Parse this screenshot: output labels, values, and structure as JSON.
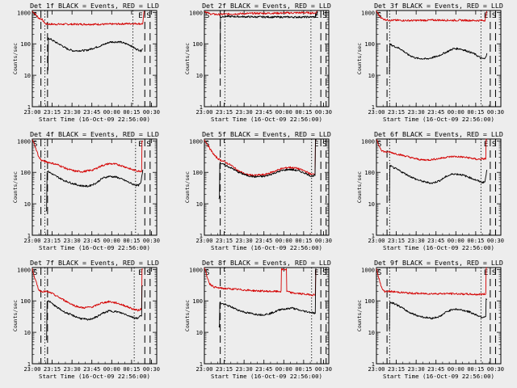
{
  "figure": {
    "background": "#ededed",
    "axis_color": "#000000",
    "events_color": "#000000",
    "lld_color": "#d40000",
    "xlabel": "Start Time (16-Oct-09 22:56:00)",
    "ylabel": "Counts/sec",
    "x_ticks": [
      "23:00",
      "23:15",
      "23:30",
      "23:45",
      "00:00",
      "00:15",
      "00:30"
    ],
    "y_ticks": [
      "1",
      "10",
      "100",
      "1000"
    ],
    "markers": {
      "start": "S",
      "end": "E",
      "s": "S"
    }
  },
  "chart_data": [
    {
      "type": "line",
      "title": "Det 1f BLACK = Events, RED = LLD",
      "xlabel": "Start Time (16-Oct-09 22:56:00)",
      "ylabel": "Counts/sec",
      "x_units": "minutes since 22:56:00",
      "xlim": [
        4,
        98
      ],
      "ylim": [
        1,
        1000
      ],
      "yscale": "log",
      "x_ticks_minutes": [
        4,
        19,
        34,
        49,
        64,
        79,
        94
      ],
      "vlines": {
        "dashed": [
          10.5,
          15.5,
          89,
          93
        ],
        "dotted": [
          13.5,
          80
        ]
      },
      "series": [
        {
          "name": "LLD",
          "color": "red",
          "x": [
            4,
            6,
            9,
            11,
            14,
            20,
            30,
            40,
            50,
            60,
            70,
            78,
            84,
            86,
            87.5,
            88.5
          ],
          "y": [
            1100,
            900,
            650,
            620,
            430,
            420,
            420,
            420,
            420,
            420,
            430,
            440,
            440,
            430,
            440,
            1100
          ]
        },
        {
          "name": "Events",
          "color": "black",
          "x": [
            15.5,
            16.5,
            18,
            22,
            26,
            30,
            35,
            45,
            55,
            63,
            70,
            77,
            82,
            86,
            87.5
          ],
          "y": [
            14,
            150,
            140,
            110,
            90,
            70,
            60,
            62,
            85,
            115,
            115,
            95,
            70,
            60,
            70
          ]
        }
      ]
    },
    {
      "type": "line",
      "title": "Det 2f BLACK = Events, RED = LLD",
      "xlabel": "Start Time (16-Oct-09 22:56:00)",
      "ylabel": "Counts/sec",
      "x_units": "minutes since 22:56:00",
      "xlim": [
        4,
        98
      ],
      "ylim": [
        1,
        1000
      ],
      "yscale": "log",
      "x_ticks_minutes": [
        4,
        19,
        34,
        49,
        64,
        79,
        94
      ],
      "vlines": {
        "dashed": [
          16,
          92,
          96
        ],
        "dotted": [
          19.5,
          84.5
        ]
      },
      "series": [
        {
          "name": "LLD",
          "color": "red",
          "x": [
            4,
            6,
            8,
            11,
            14,
            20,
            40,
            60,
            80,
            88,
            89.5
          ],
          "y": [
            1100,
            1000,
            900,
            880,
            860,
            880,
            930,
            950,
            980,
            950,
            1100
          ]
        },
        {
          "name": "Events",
          "color": "black",
          "x": [
            15.5,
            16.5,
            18,
            25,
            40,
            60,
            80,
            88,
            89.5
          ],
          "y": [
            15,
            700,
            750,
            740,
            720,
            710,
            710,
            720,
            1050
          ]
        }
      ]
    },
    {
      "type": "line",
      "title": "Det 3f BLACK = Events, RED = LLD",
      "xlabel": "Start Time (16-Oct-09 22:56:00)",
      "ylabel": "Counts/sec",
      "x_units": "minutes since 22:56:00",
      "xlim": [
        4,
        98
      ],
      "ylim": [
        1,
        1000
      ],
      "yscale": "log",
      "x_ticks_minutes": [
        4,
        19,
        34,
        49,
        64,
        79,
        94
      ],
      "vlines": {
        "dashed": [
          12,
          90,
          94
        ],
        "dotted": [
          14,
          83
        ]
      },
      "series": [
        {
          "name": "LLD",
          "color": "red",
          "x": [
            4,
            6,
            8,
            10,
            14,
            20,
            30,
            40,
            50,
            60,
            70,
            80,
            86,
            87.5
          ],
          "y": [
            1100,
            800,
            650,
            600,
            560,
            560,
            550,
            560,
            570,
            560,
            560,
            550,
            560,
            1100
          ]
        },
        {
          "name": "Events",
          "color": "black",
          "x": [
            13.5,
            14.5,
            17,
            22,
            28,
            34,
            42,
            50,
            57,
            62,
            67,
            72,
            78,
            83,
            86,
            87.5
          ],
          "y": [
            12,
            95,
            85,
            70,
            45,
            35,
            33,
            40,
            55,
            70,
            70,
            60,
            48,
            35,
            33,
            50
          ]
        }
      ]
    },
    {
      "type": "line",
      "title": "Det 4f BLACK = Events, RED = LLD",
      "xlabel": "Start Time (16-Oct-09 22:56:00)",
      "ylabel": "Counts/sec",
      "x_units": "minutes since 22:56:00",
      "xlim": [
        4,
        98
      ],
      "ylim": [
        1,
        1000
      ],
      "yscale": "log",
      "x_ticks_minutes": [
        4,
        19,
        34,
        49,
        64,
        79,
        94
      ],
      "vlines": {
        "dashed": [
          10.5,
          15.5,
          89,
          93
        ],
        "dotted": [
          13.5,
          82
        ]
      },
      "series": [
        {
          "name": "LLD",
          "color": "red",
          "x": [
            4,
            6,
            9,
            11,
            14,
            18,
            24,
            30,
            36,
            42,
            50,
            56,
            62,
            68,
            74,
            80,
            84,
            86,
            87.5
          ],
          "y": [
            1100,
            700,
            300,
            240,
            220,
            200,
            170,
            130,
            110,
            105,
            120,
            160,
            190,
            180,
            150,
            120,
            110,
            110,
            1000
          ]
        },
        {
          "name": "Events",
          "color": "black",
          "x": [
            14.5,
            15.5,
            17,
            22,
            28,
            34,
            40,
            46,
            52,
            57,
            62,
            68,
            74,
            80,
            84,
            86,
            87.5
          ],
          "y": [
            6,
            110,
            100,
            75,
            55,
            45,
            38,
            36,
            45,
            65,
            75,
            70,
            55,
            42,
            38,
            45,
            120
          ]
        }
      ]
    },
    {
      "type": "line",
      "title": "Det 5f BLACK = Events, RED = LLD",
      "xlabel": "Start Time (16-Oct-09 22:56:00)",
      "ylabel": "Counts/sec",
      "x_units": "minutes since 22:56:00",
      "xlim": [
        4,
        98
      ],
      "ylim": [
        1,
        1000
      ],
      "yscale": "log",
      "x_ticks_minutes": [
        4,
        19,
        34,
        49,
        64,
        79,
        94
      ],
      "vlines": {
        "dashed": [
          16,
          92,
          96
        ],
        "dotted": [
          19.5,
          85
        ]
      },
      "series": [
        {
          "name": "LLD",
          "color": "red",
          "x": [
            4,
            6,
            9,
            12,
            15,
            18,
            24,
            30,
            36,
            42,
            50,
            56,
            62,
            68,
            74,
            80,
            85,
            87,
            88.5
          ],
          "y": [
            1100,
            800,
            500,
            330,
            260,
            230,
            170,
            110,
            85,
            80,
            85,
            105,
            130,
            145,
            135,
            110,
            85,
            90,
            1100
          ]
        },
        {
          "name": "Events",
          "color": "black",
          "x": [
            15,
            16,
            18,
            24,
            30,
            36,
            42,
            50,
            56,
            62,
            68,
            74,
            80,
            85,
            87,
            88.5
          ],
          "y": [
            15,
            200,
            180,
            140,
            100,
            80,
            72,
            75,
            92,
            112,
            125,
            115,
            95,
            75,
            80,
            1050
          ]
        }
      ]
    },
    {
      "type": "line",
      "title": "Det 6f BLACK = Events, RED = LLD",
      "xlabel": "Start Time (16-Oct-09 22:56:00)",
      "ylabel": "Counts/sec",
      "x_units": "minutes since 22:56:00",
      "xlim": [
        4,
        98
      ],
      "ylim": [
        1,
        1000
      ],
      "yscale": "log",
      "x_ticks_minutes": [
        4,
        19,
        34,
        49,
        64,
        79,
        94
      ],
      "vlines": {
        "dashed": [
          12,
          90,
          94
        ],
        "dotted": [
          14,
          83
        ]
      },
      "series": [
        {
          "name": "LLD",
          "color": "red",
          "x": [
            4,
            6,
            8,
            10,
            14,
            20,
            26,
            32,
            38,
            44,
            50,
            56,
            62,
            68,
            74,
            80,
            86,
            87.5
          ],
          "y": [
            1100,
            700,
            500,
            450,
            440,
            380,
            330,
            280,
            250,
            250,
            270,
            300,
            320,
            310,
            290,
            260,
            270,
            1100
          ]
        },
        {
          "name": "Events",
          "color": "black",
          "x": [
            13.5,
            14.5,
            17,
            22,
            28,
            34,
            40,
            46,
            52,
            57,
            62,
            68,
            74,
            80,
            84,
            86,
            87.5
          ],
          "y": [
            12,
            160,
            140,
            110,
            80,
            60,
            50,
            45,
            55,
            75,
            90,
            85,
            70,
            55,
            48,
            50,
            120
          ]
        }
      ]
    },
    {
      "type": "line",
      "title": "Det 7f BLACK = Events, RED = LLD",
      "xlabel": "Start Time (16-Oct-09 22:56:00)",
      "ylabel": "Counts/sec",
      "x_units": "minutes since 22:56:00",
      "xlim": [
        4,
        98
      ],
      "ylim": [
        1,
        1000
      ],
      "yscale": "log",
      "x_ticks_minutes": [
        4,
        19,
        34,
        49,
        64,
        79,
        94
      ],
      "vlines": {
        "dashed": [
          10.5,
          15.5,
          89,
          93
        ],
        "dotted": [
          13.5,
          81
        ]
      },
      "series": [
        {
          "name": "LLD",
          "color": "red",
          "x": [
            4,
            6,
            9,
            11,
            14,
            18,
            24,
            30,
            36,
            42,
            50,
            56,
            62,
            68,
            74,
            80,
            84,
            86,
            87.5
          ],
          "y": [
            1100,
            500,
            220,
            200,
            200,
            180,
            130,
            95,
            70,
            60,
            65,
            85,
            95,
            85,
            70,
            55,
            50,
            55,
            1000
          ]
        },
        {
          "name": "Events",
          "color": "black",
          "x": [
            14.5,
            15.5,
            17,
            22,
            28,
            34,
            40,
            46,
            52,
            57,
            62,
            68,
            74,
            80,
            84,
            86,
            87.5
          ],
          "y": [
            6,
            100,
            95,
            65,
            45,
            35,
            28,
            25,
            30,
            40,
            48,
            45,
            38,
            30,
            28,
            35,
            300
          ]
        }
      ]
    },
    {
      "type": "line",
      "title": "Det 8f BLACK = Events, RED = LLD",
      "xlabel": "Start Time (16-Oct-09 22:56:00)",
      "ylabel": "Counts/sec",
      "x_units": "minutes since 22:56:00",
      "xlim": [
        4,
        98
      ],
      "ylim": [
        1,
        1000
      ],
      "yscale": "log",
      "x_ticks_minutes": [
        4,
        19,
        34,
        49,
        64,
        79,
        94
      ],
      "vlines": {
        "dashed": [
          16,
          92,
          96
        ],
        "dotted": [
          19.5,
          85
        ]
      },
      "series": [
        {
          "name": "LLD",
          "color": "red",
          "x": [
            4,
            6,
            8,
            11,
            14,
            18,
            24,
            30,
            36,
            42,
            48,
            54,
            60,
            62,
            62.5,
            66,
            66.5,
            70,
            76,
            82,
            86,
            87.5,
            88.5
          ],
          "y": [
            1100,
            600,
            350,
            280,
            260,
            250,
            240,
            230,
            220,
            210,
            205,
            200,
            200,
            200,
            1000,
            1000,
            200,
            180,
            170,
            160,
            155,
            160,
            1000
          ]
        },
        {
          "name": "Events",
          "color": "black",
          "x": [
            15,
            16,
            18,
            24,
            30,
            36,
            42,
            48,
            54,
            60,
            62,
            66,
            70,
            76,
            82,
            86,
            87.5,
            88.5
          ],
          "y": [
            15,
            85,
            80,
            65,
            50,
            42,
            38,
            36,
            40,
            50,
            55,
            55,
            60,
            50,
            45,
            42,
            40,
            1000
          ]
        }
      ]
    },
    {
      "type": "line",
      "title": "Det 9f BLACK = Events, RED = LLD",
      "xlabel": "Start Time (16-Oct-09 22:56:00)",
      "ylabel": "Counts/sec",
      "x_units": "minutes since 22:56:00",
      "xlim": [
        4,
        98
      ],
      "ylim": [
        1,
        1000
      ],
      "yscale": "log",
      "x_ticks_minutes": [
        4,
        19,
        34,
        49,
        64,
        79,
        94
      ],
      "vlines": {
        "dashed": [
          12,
          90,
          94
        ],
        "dotted": [
          14,
          83
        ]
      },
      "series": [
        {
          "name": "LLD",
          "color": "red",
          "x": [
            4,
            6,
            8,
            10,
            14,
            20,
            30,
            40,
            50,
            60,
            70,
            80,
            86,
            87.5
          ],
          "y": [
            1100,
            500,
            250,
            200,
            200,
            190,
            175,
            170,
            170,
            170,
            165,
            160,
            165,
            1100
          ]
        },
        {
          "name": "Events",
          "color": "black",
          "x": [
            13.5,
            14.5,
            17,
            22,
            28,
            34,
            40,
            46,
            52,
            57,
            62,
            68,
            74,
            80,
            84,
            86,
            87.5
          ],
          "y": [
            12,
            90,
            85,
            65,
            45,
            35,
            30,
            28,
            32,
            45,
            55,
            52,
            45,
            35,
            30,
            32,
            110
          ]
        }
      ]
    }
  ]
}
